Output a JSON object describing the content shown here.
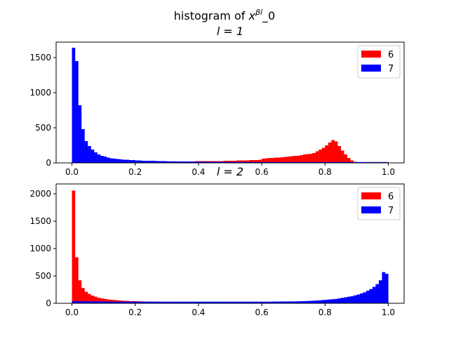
{
  "chart_data": [
    {
      "type": "bar",
      "title_prefix": "histogram of ",
      "title_math_base": "x",
      "title_math_sup": "βl",
      "title_suffix": "_0",
      "subtitle": "l = 1",
      "xlim": [
        -0.05,
        1.05
      ],
      "ylim": [
        0,
        1720
      ],
      "xticks": [
        "0.0",
        "0.2",
        "0.4",
        "0.6",
        "0.8",
        "1.0"
      ],
      "yticks": [
        "0",
        "500",
        "1000",
        "1500"
      ],
      "legend_position": "upper right",
      "bin_width": 0.01,
      "series": [
        {
          "name": "6",
          "color": "#ff0000",
          "x": [
            0.0,
            0.01,
            0.02,
            0.03,
            0.04,
            0.05,
            0.06,
            0.07,
            0.08,
            0.09,
            0.1,
            0.11,
            0.12,
            0.13,
            0.14,
            0.15,
            0.16,
            0.17,
            0.18,
            0.19,
            0.2,
            0.21,
            0.22,
            0.23,
            0.24,
            0.25,
            0.26,
            0.27,
            0.28,
            0.29,
            0.3,
            0.31,
            0.32,
            0.33,
            0.34,
            0.35,
            0.36,
            0.37,
            0.38,
            0.39,
            0.4,
            0.41,
            0.42,
            0.43,
            0.44,
            0.45,
            0.46,
            0.47,
            0.48,
            0.49,
            0.5,
            0.51,
            0.52,
            0.53,
            0.54,
            0.55,
            0.56,
            0.57,
            0.58,
            0.59,
            0.6,
            0.61,
            0.62,
            0.63,
            0.64,
            0.65,
            0.66,
            0.67,
            0.68,
            0.69,
            0.7,
            0.71,
            0.72,
            0.73,
            0.74,
            0.75,
            0.76,
            0.77,
            0.78,
            0.79,
            0.8,
            0.81,
            0.82,
            0.83,
            0.84,
            0.85,
            0.86,
            0.87,
            0.88,
            0.89,
            0.9,
            0.91,
            0.92,
            0.93,
            0.94,
            0.95,
            0.96,
            0.97,
            0.98,
            0.99
          ],
          "values": [
            5,
            5,
            5,
            5,
            5,
            5,
            5,
            5,
            5,
            5,
            5,
            10,
            10,
            10,
            10,
            10,
            10,
            10,
            10,
            10,
            10,
            10,
            10,
            10,
            10,
            15,
            15,
            15,
            15,
            15,
            20,
            20,
            20,
            20,
            20,
            20,
            20,
            20,
            20,
            25,
            25,
            25,
            25,
            25,
            25,
            25,
            25,
            25,
            30,
            30,
            30,
            30,
            35,
            35,
            35,
            35,
            40,
            40,
            40,
            45,
            60,
            65,
            70,
            70,
            75,
            75,
            80,
            85,
            90,
            95,
            100,
            100,
            110,
            120,
            125,
            130,
            140,
            165,
            190,
            215,
            250,
            290,
            325,
            305,
            240,
            175,
            120,
            70,
            35,
            15,
            5,
            0,
            0,
            0,
            0,
            0,
            0,
            0,
            0,
            0
          ]
        },
        {
          "name": "7",
          "color": "#0000ff",
          "x": [
            0.0,
            0.01,
            0.02,
            0.03,
            0.04,
            0.05,
            0.06,
            0.07,
            0.08,
            0.09,
            0.1,
            0.11,
            0.12,
            0.13,
            0.14,
            0.15,
            0.16,
            0.17,
            0.18,
            0.19,
            0.2,
            0.21,
            0.22,
            0.23,
            0.24,
            0.25,
            0.26,
            0.27,
            0.28,
            0.29,
            0.3,
            0.31,
            0.32,
            0.33,
            0.34,
            0.35,
            0.36,
            0.37,
            0.38,
            0.39,
            0.4,
            0.41,
            0.42,
            0.43,
            0.44,
            0.45,
            0.46,
            0.47,
            0.48,
            0.49,
            0.5,
            0.51,
            0.52,
            0.53,
            0.54,
            0.55,
            0.56,
            0.57,
            0.58,
            0.59,
            0.6,
            0.61,
            0.62,
            0.63,
            0.64,
            0.65,
            0.66,
            0.67,
            0.68,
            0.69,
            0.7,
            0.71,
            0.72,
            0.73,
            0.74,
            0.75,
            0.76,
            0.77,
            0.78,
            0.79,
            0.8,
            0.81,
            0.82,
            0.83,
            0.84,
            0.85,
            0.86,
            0.87,
            0.88,
            0.89,
            0.9,
            0.91,
            0.92,
            0.93,
            0.94,
            0.95,
            0.96,
            0.97,
            0.98,
            0.99
          ],
          "values": [
            1640,
            1450,
            820,
            480,
            310,
            240,
            190,
            150,
            120,
            100,
            90,
            75,
            65,
            60,
            55,
            50,
            45,
            45,
            40,
            40,
            35,
            35,
            30,
            30,
            30,
            30,
            28,
            25,
            25,
            25,
            22,
            22,
            22,
            20,
            20,
            20,
            20,
            18,
            18,
            18,
            16,
            16,
            16,
            16,
            15,
            15,
            15,
            15,
            15,
            14,
            14,
            14,
            14,
            13,
            13,
            13,
            13,
            12,
            12,
            12,
            12,
            12,
            12,
            12,
            12,
            12,
            12,
            12,
            12,
            12,
            12,
            12,
            12,
            12,
            12,
            12,
            12,
            12,
            12,
            12,
            12,
            12,
            12,
            12,
            12,
            12,
            12,
            12,
            12,
            12,
            12,
            12,
            12,
            12,
            12,
            12,
            12,
            12,
            12,
            12
          ]
        }
      ]
    },
    {
      "type": "bar",
      "title": "l = 2",
      "xlim": [
        -0.05,
        1.05
      ],
      "ylim": [
        0,
        2180
      ],
      "xticks": [
        "0.0",
        "0.2",
        "0.4",
        "0.6",
        "0.8",
        "1.0"
      ],
      "yticks": [
        "0",
        "500",
        "1000",
        "1500",
        "2000"
      ],
      "legend_position": "upper right",
      "bin_width": 0.01,
      "series": [
        {
          "name": "6",
          "color": "#ff0000",
          "x": [
            0.0,
            0.01,
            0.02,
            0.03,
            0.04,
            0.05,
            0.06,
            0.07,
            0.08,
            0.09,
            0.1,
            0.11,
            0.12,
            0.13,
            0.14,
            0.15,
            0.16,
            0.17,
            0.18,
            0.19,
            0.2,
            0.21,
            0.22,
            0.23,
            0.24,
            0.25,
            0.26,
            0.27,
            0.28,
            0.29,
            0.3,
            0.31,
            0.32,
            0.33,
            0.34,
            0.35,
            0.36,
            0.37,
            0.38,
            0.39,
            0.4,
            0.41,
            0.42,
            0.43,
            0.44,
            0.45,
            0.46,
            0.47,
            0.48,
            0.49,
            0.5,
            0.51,
            0.52,
            0.53,
            0.54,
            0.55,
            0.56,
            0.57,
            0.58,
            0.59,
            0.6,
            0.61,
            0.62,
            0.63,
            0.64,
            0.65,
            0.66,
            0.67,
            0.68,
            0.69,
            0.7,
            0.71,
            0.72,
            0.73,
            0.74,
            0.75,
            0.76,
            0.77,
            0.78,
            0.79,
            0.8,
            0.81,
            0.82,
            0.83,
            0.84,
            0.85,
            0.86,
            0.87,
            0.88,
            0.89,
            0.9,
            0.91,
            0.92,
            0.93,
            0.94,
            0.95,
            0.96,
            0.97,
            0.98,
            0.99
          ],
          "values": [
            2060,
            840,
            420,
            280,
            210,
            170,
            140,
            120,
            100,
            90,
            80,
            70,
            65,
            60,
            55,
            50,
            45,
            45,
            40,
            40,
            38,
            36,
            34,
            32,
            30,
            30,
            28,
            28,
            26,
            26,
            25,
            24,
            24,
            23,
            22,
            22,
            21,
            21,
            20,
            20,
            20,
            19,
            19,
            18,
            18,
            18,
            18,
            17,
            17,
            17,
            17,
            16,
            16,
            16,
            16,
            15,
            15,
            15,
            15,
            14,
            14,
            14,
            14,
            14,
            13,
            13,
            13,
            13,
            13,
            12,
            12,
            12,
            12,
            12,
            11,
            11,
            11,
            11,
            11,
            10,
            10,
            10,
            10,
            10,
            10,
            10,
            9,
            9,
            9,
            9,
            8,
            8,
            8,
            8,
            8,
            7,
            7,
            7,
            6,
            6
          ]
        },
        {
          "name": "7",
          "color": "#0000ff",
          "x": [
            0.0,
            0.01,
            0.02,
            0.03,
            0.04,
            0.05,
            0.06,
            0.07,
            0.08,
            0.09,
            0.1,
            0.11,
            0.12,
            0.13,
            0.14,
            0.15,
            0.16,
            0.17,
            0.18,
            0.19,
            0.2,
            0.21,
            0.22,
            0.23,
            0.24,
            0.25,
            0.26,
            0.27,
            0.28,
            0.29,
            0.3,
            0.31,
            0.32,
            0.33,
            0.34,
            0.35,
            0.36,
            0.37,
            0.38,
            0.39,
            0.4,
            0.41,
            0.42,
            0.43,
            0.44,
            0.45,
            0.46,
            0.47,
            0.48,
            0.49,
            0.5,
            0.51,
            0.52,
            0.53,
            0.54,
            0.55,
            0.56,
            0.57,
            0.58,
            0.59,
            0.6,
            0.61,
            0.62,
            0.63,
            0.64,
            0.65,
            0.66,
            0.67,
            0.68,
            0.69,
            0.7,
            0.71,
            0.72,
            0.73,
            0.74,
            0.75,
            0.76,
            0.77,
            0.78,
            0.79,
            0.8,
            0.81,
            0.82,
            0.83,
            0.84,
            0.85,
            0.86,
            0.87,
            0.88,
            0.89,
            0.9,
            0.91,
            0.92,
            0.93,
            0.94,
            0.95,
            0.96,
            0.97,
            0.98,
            0.99
          ],
          "values": [
            40,
            40,
            38,
            38,
            36,
            36,
            35,
            34,
            34,
            33,
            32,
            32,
            31,
            31,
            30,
            30,
            30,
            30,
            30,
            30,
            30,
            30,
            30,
            30,
            30,
            30,
            30,
            30,
            30,
            30,
            30,
            30,
            30,
            30,
            30,
            30,
            30,
            30,
            30,
            30,
            30,
            30,
            30,
            30,
            30,
            30,
            30,
            30,
            30,
            30,
            30,
            30,
            30,
            30,
            30,
            30,
            30,
            30,
            30,
            30,
            30,
            30,
            30,
            32,
            32,
            32,
            33,
            33,
            34,
            34,
            35,
            36,
            38,
            40,
            42,
            45,
            48,
            50,
            55,
            60,
            65,
            70,
            75,
            80,
            90,
            100,
            110,
            120,
            130,
            145,
            160,
            180,
            200,
            230,
            260,
            300,
            350,
            420,
            570,
            540
          ]
        }
      ]
    }
  ]
}
